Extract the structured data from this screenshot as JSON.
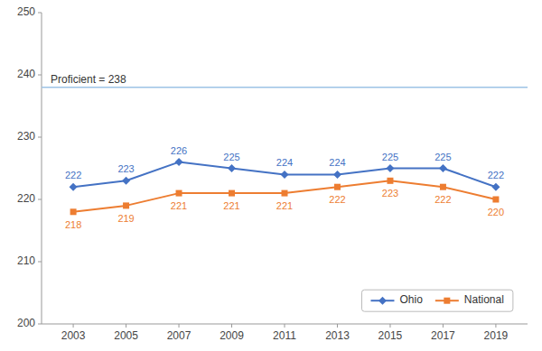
{
  "chart_data": {
    "type": "line",
    "x": [
      2003,
      2005,
      2007,
      2009,
      2011,
      2013,
      2015,
      2017,
      2019
    ],
    "series": [
      {
        "name": "Ohio",
        "color": "#4472C4",
        "marker": "diamond",
        "values": [
          222,
          223,
          226,
          225,
          224,
          224,
          225,
          225,
          222
        ]
      },
      {
        "name": "National",
        "color": "#ED7D31",
        "marker": "square",
        "values": [
          218,
          219,
          221,
          221,
          221,
          222,
          223,
          222,
          220
        ]
      }
    ],
    "annotations": [
      {
        "text": "Proficient = 238",
        "y": 238,
        "color": "#9DC3E6"
      }
    ],
    "xlim": [
      2001.8,
      2020.2
    ],
    "xticks": [
      2003,
      2005,
      2007,
      2009,
      2011,
      2013,
      2015,
      2017,
      2019
    ],
    "ylim": [
      200,
      250
    ],
    "yticks": [
      200,
      210,
      220,
      230,
      240,
      250
    ],
    "grid": false,
    "legend": "lower right",
    "data_labels": true
  }
}
